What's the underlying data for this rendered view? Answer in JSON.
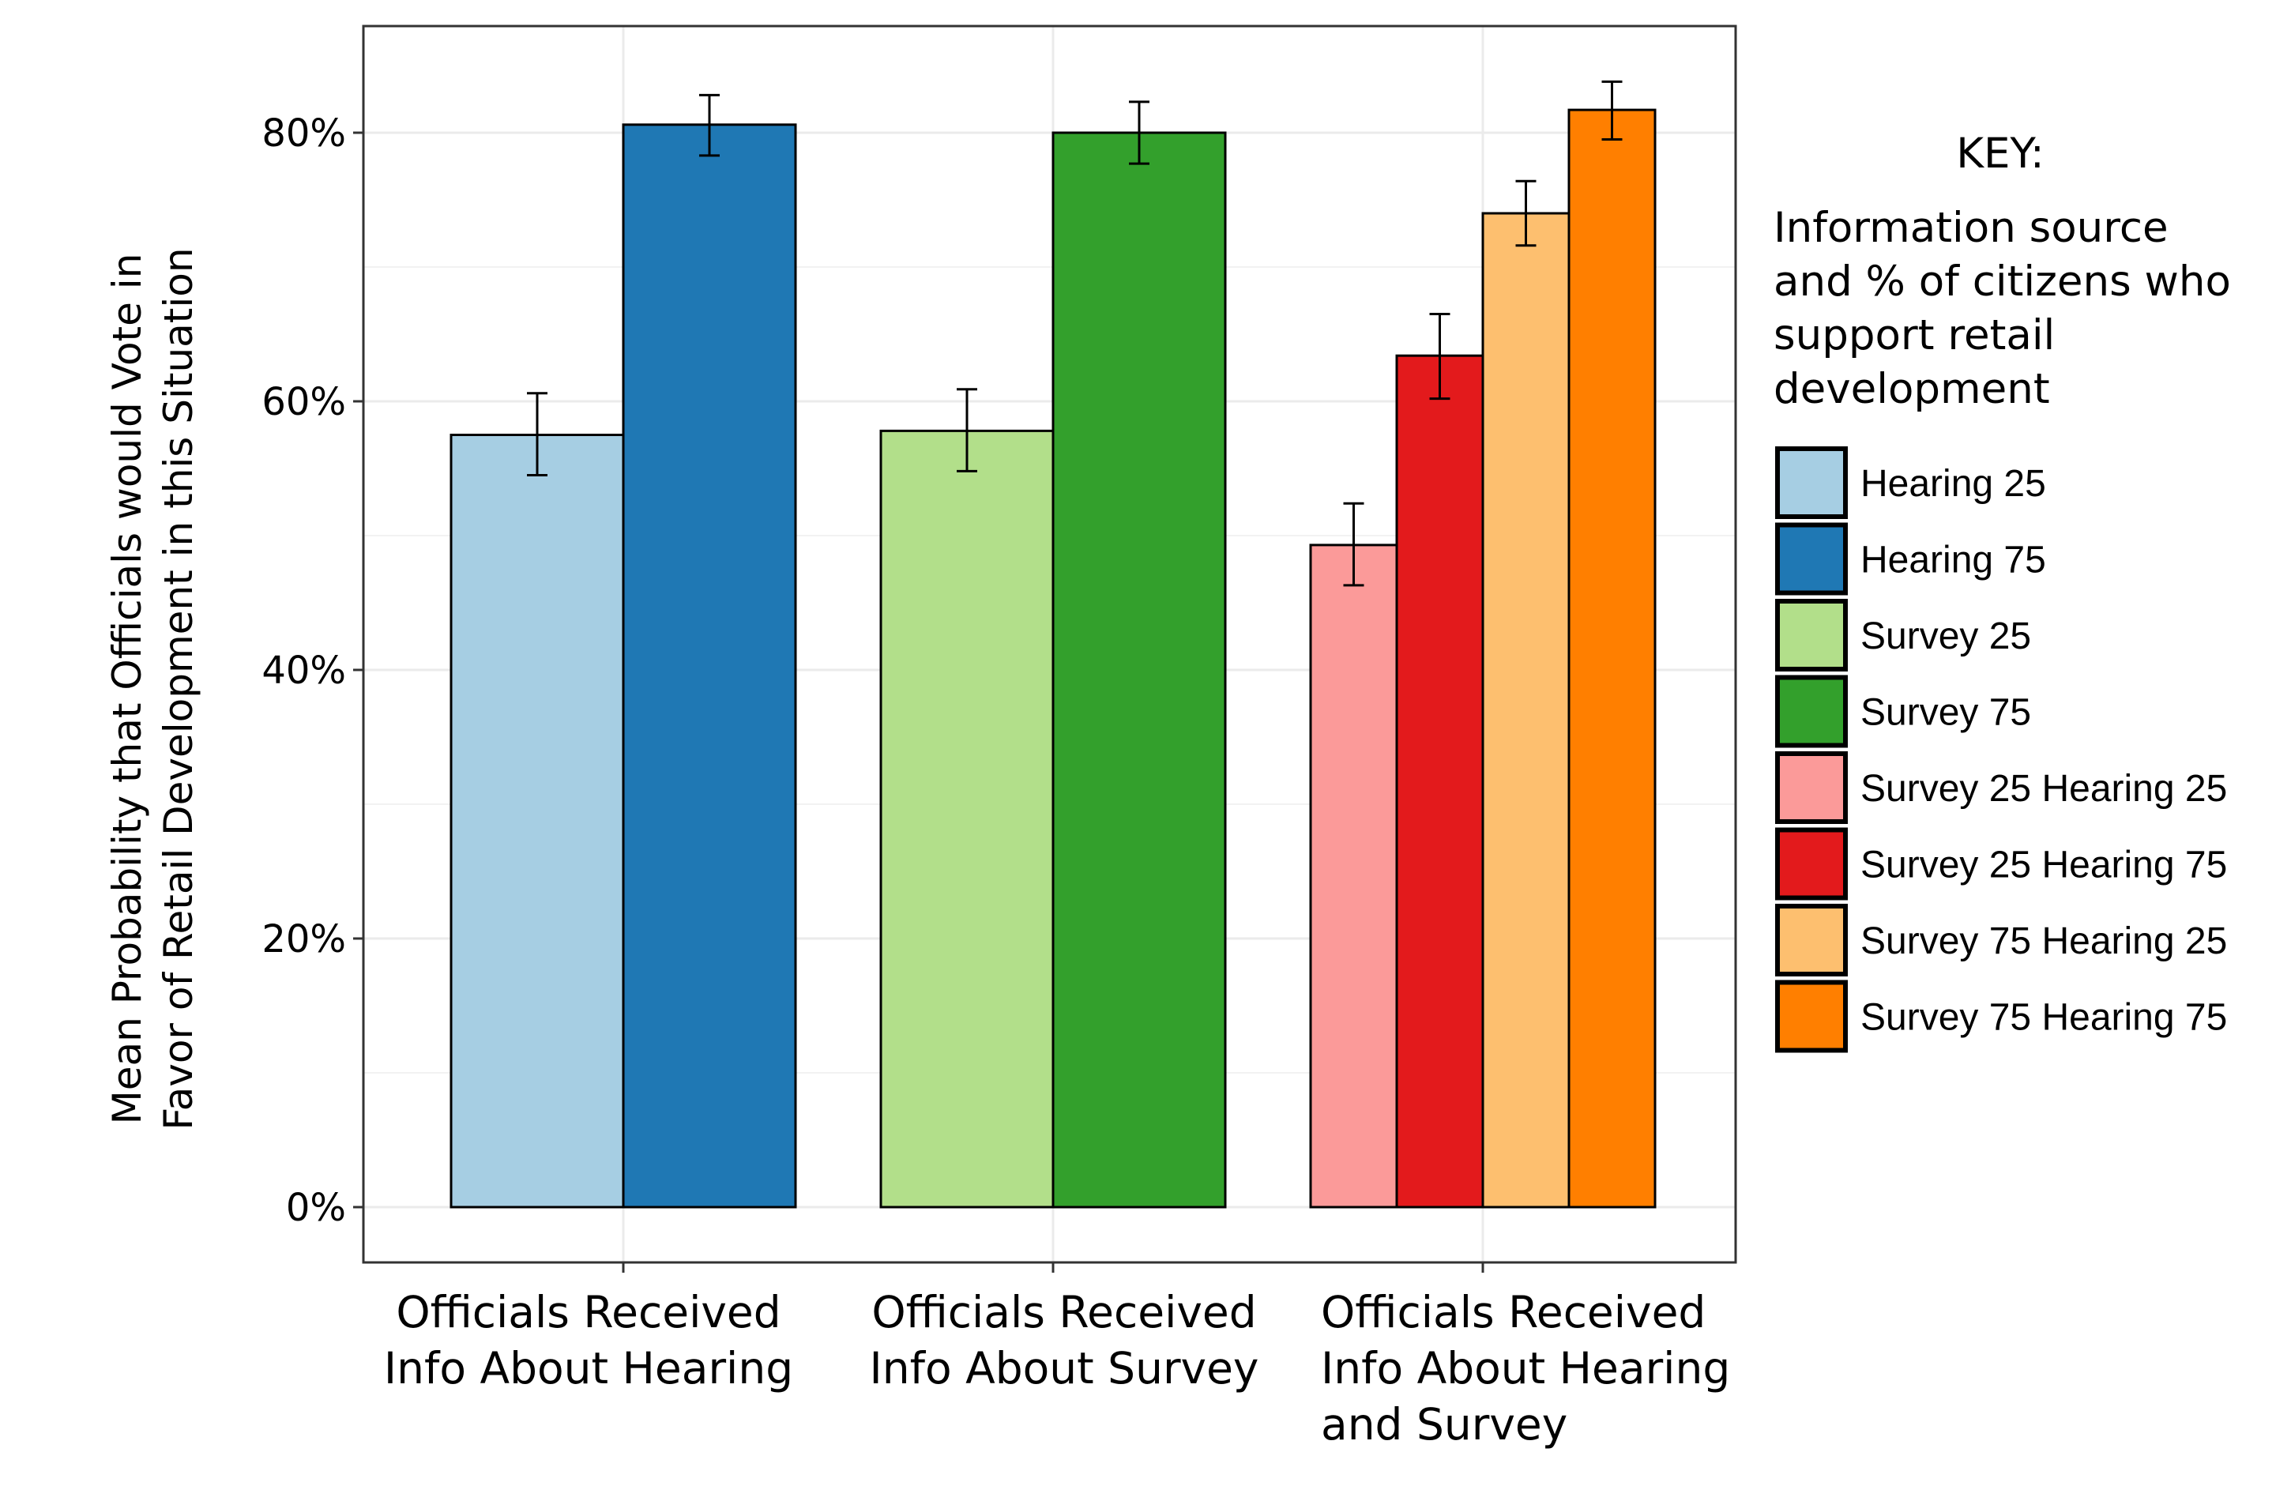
{
  "chart_data": {
    "type": "bar",
    "ylabel": [
      "Mean Probability that Officials would Vote in",
      "Favor of Retail Development in this Situation"
    ],
    "xlabel": "",
    "ylim": [
      -4,
      88
    ],
    "yticks": [
      0,
      20,
      40,
      60,
      80
    ],
    "ytick_labels": [
      "0%",
      "20%",
      "40%",
      "60%",
      "80%"
    ],
    "grid": true,
    "categories": [
      [
        "Officials Received",
        "Info About Hearing"
      ],
      [
        "Officials Received",
        "Info About Survey"
      ],
      [
        "Officials Received",
        "Info About Hearing",
        "and Survey"
      ]
    ],
    "groups": [
      {
        "bars": [
          {
            "series": 0,
            "value": 57.5,
            "err_low": 54.5,
            "err_high": 60.6
          },
          {
            "series": 1,
            "value": 80.6,
            "err_low": 78.3,
            "err_high": 82.8
          }
        ]
      },
      {
        "bars": [
          {
            "series": 2,
            "value": 57.8,
            "err_low": 54.8,
            "err_high": 60.9
          },
          {
            "series": 3,
            "value": 80.0,
            "err_low": 77.7,
            "err_high": 82.3
          }
        ]
      },
      {
        "bars": [
          {
            "series": 4,
            "value": 49.3,
            "err_low": 46.3,
            "err_high": 52.4
          },
          {
            "series": 5,
            "value": 63.4,
            "err_low": 60.2,
            "err_high": 66.5
          },
          {
            "series": 6,
            "value": 74.0,
            "err_low": 71.6,
            "err_high": 76.4
          },
          {
            "series": 7,
            "value": 81.7,
            "err_low": 79.5,
            "err_high": 83.8
          }
        ]
      }
    ],
    "series": [
      {
        "name": "Hearing 25",
        "color": "#a6cee3"
      },
      {
        "name": "Hearing 75",
        "color": "#1f78b4"
      },
      {
        "name": "Survey 25",
        "color": "#b2df8a"
      },
      {
        "name": "Survey 75",
        "color": "#33a02c"
      },
      {
        "name": "Survey 25 Hearing 25",
        "color": "#fb9a99"
      },
      {
        "name": "Survey 25 Hearing 75",
        "color": "#e31a1c"
      },
      {
        "name": "Survey 75 Hearing 25",
        "color": "#fdbf6f"
      },
      {
        "name": "Survey 75 Hearing 75",
        "color": "#ff7f00"
      }
    ],
    "legend": {
      "position": "right",
      "title_line1": "KEY:",
      "title_lines": [
        "Information source",
        "and % of citizens who",
        "support retail",
        "development"
      ]
    }
  }
}
